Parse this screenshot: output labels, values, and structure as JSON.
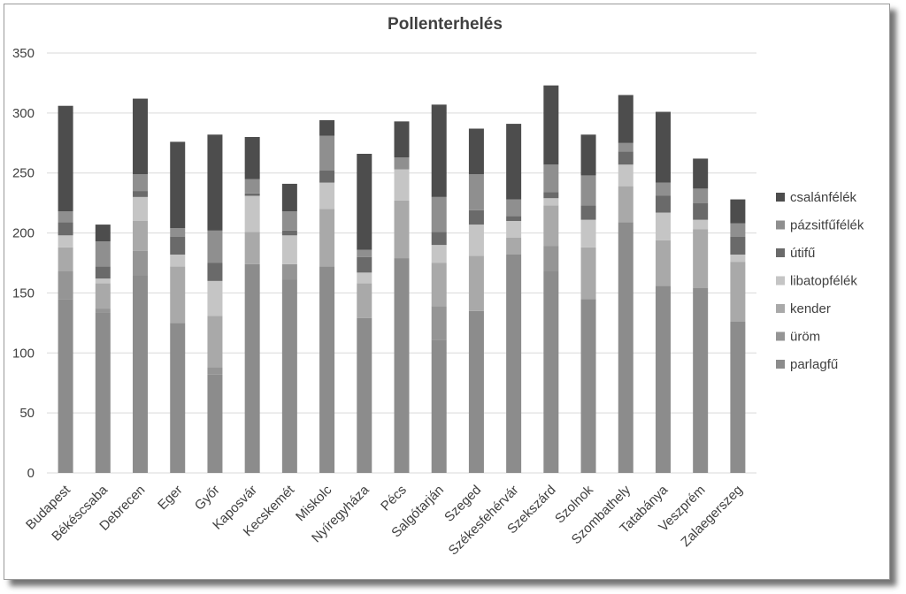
{
  "chart_data": {
    "type": "bar",
    "stacked": true,
    "title": "Pollenterhelés",
    "xlabel": "",
    "ylabel": "",
    "ylim": [
      0,
      350
    ],
    "yticks": [
      0,
      50,
      100,
      150,
      200,
      250,
      300,
      350
    ],
    "grid": true,
    "legend_position": "right",
    "categories": [
      "Budapest",
      "Békéscsaba",
      "Debrecen",
      "Eger",
      "Győr",
      "Kaposvár",
      "Kecskemét",
      "Miskolc",
      "Nyíregyháza",
      "Pécs",
      "Salgótarján",
      "Szeged",
      "Székesfehérvár",
      "Szekszárd",
      "Szolnok",
      "Szombathely",
      "Tatabánya",
      "Veszprém",
      "Zalaegerszeg"
    ],
    "series": [
      {
        "name": "parlagfű",
        "color": "#8c8c8c",
        "values": [
          145,
          134,
          165,
          125,
          82,
          174,
          161,
          172,
          129,
          179,
          111,
          135,
          182,
          168,
          145,
          209,
          156,
          154,
          126
        ]
      },
      {
        "name": "üröm",
        "color": "#959595",
        "values": [
          23,
          3,
          20,
          0,
          6,
          0,
          13,
          0,
          0,
          0,
          28,
          0,
          0,
          21,
          0,
          0,
          0,
          0,
          0
        ]
      },
      {
        "name": "kender",
        "color": "#a9a9a9",
        "values": [
          20,
          21,
          25,
          47,
          43,
          27,
          0,
          48,
          29,
          48,
          36,
          46,
          14,
          34,
          43,
          30,
          38,
          49,
          50
        ]
      },
      {
        "name": "libatopfélék",
        "color": "#c5c5c5",
        "values": [
          10,
          4,
          20,
          10,
          29,
          30,
          24,
          22,
          9,
          26,
          15,
          26,
          14,
          6,
          23,
          18,
          23,
          8,
          6
        ]
      },
      {
        "name": "útifű",
        "color": "#6a6a6a",
        "values": [
          11,
          10,
          5,
          15,
          15,
          2,
          4,
          10,
          13,
          0,
          11,
          12,
          4,
          5,
          12,
          11,
          14,
          14,
          15
        ]
      },
      {
        "name": "pázsitfűfélék",
        "color": "#8f8f8f",
        "values": [
          9,
          21,
          14,
          7,
          27,
          12,
          16,
          29,
          6,
          10,
          29,
          30,
          14,
          23,
          25,
          7,
          11,
          12,
          11
        ]
      },
      {
        "name": "csalánfélék",
        "color": "#4d4d4d",
        "values": [
          88,
          14,
          63,
          72,
          80,
          35,
          23,
          13,
          80,
          30,
          77,
          38,
          63,
          66,
          34,
          40,
          59,
          25,
          20
        ]
      }
    ]
  }
}
